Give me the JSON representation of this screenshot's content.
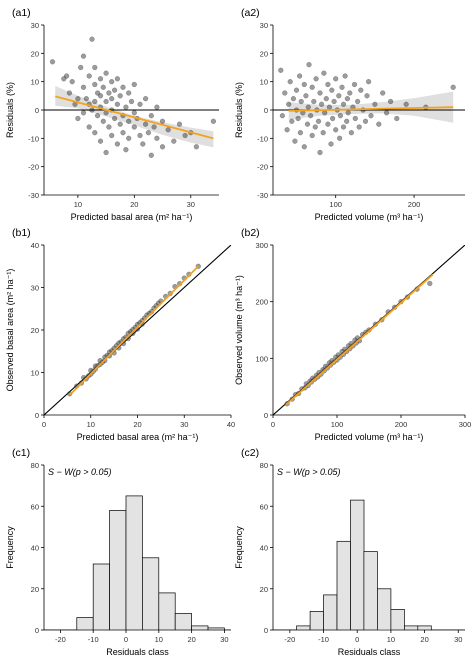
{
  "colors": {
    "point_fill": "#3a3a3a",
    "fit_line": "#f4a21e",
    "ci_band": "#d9d9d9",
    "ref_line": "#000000",
    "bar_fill": "#e3e3e3",
    "bar_stroke": "#000000",
    "axis": "#000000"
  },
  "chart_data": [
    {
      "panel": "(a1)",
      "type": "scatter",
      "xlabel": "Predicted basal area",
      "xunit": "(m² ha⁻¹)",
      "ylabel": "Residuals (%)",
      "xlim": [
        4,
        35
      ],
      "ylim": [
        -30,
        30
      ],
      "xticks": [
        10,
        20,
        30
      ],
      "yticks": [
        -30,
        -20,
        -10,
        0,
        10,
        20,
        30
      ],
      "hline_y": 0,
      "fit_line": [
        [
          6,
          4.8
        ],
        [
          34,
          -10
        ]
      ],
      "ci_band": {
        "x": [
          6,
          10,
          15,
          20,
          25,
          30,
          34
        ],
        "upper": [
          8.5,
          5,
          1.2,
          -2,
          -4.3,
          -6.2,
          -7.5
        ],
        "lower": [
          1.5,
          0.6,
          -2.3,
          -5.4,
          -8.8,
          -11.5,
          -13.2
        ]
      },
      "points": [
        [
          5.5,
          17
        ],
        [
          7.5,
          11
        ],
        [
          8,
          12
        ],
        [
          8.5,
          6
        ],
        [
          9,
          10
        ],
        [
          9.5,
          2
        ],
        [
          10,
          4
        ],
        [
          10,
          -3
        ],
        [
          10.5,
          15
        ],
        [
          11,
          19
        ],
        [
          11,
          8
        ],
        [
          11,
          -1
        ],
        [
          11.5,
          4
        ],
        [
          12,
          12
        ],
        [
          12,
          -6
        ],
        [
          12,
          2
        ],
        [
          12.5,
          25
        ],
        [
          12.5,
          0
        ],
        [
          13,
          9
        ],
        [
          13,
          3
        ],
        [
          13,
          -8
        ],
        [
          13,
          15
        ],
        [
          13.5,
          6
        ],
        [
          13.5,
          -2
        ],
        [
          14,
          11
        ],
        [
          14,
          -11
        ],
        [
          14,
          1
        ],
        [
          14,
          5
        ],
        [
          14.5,
          -4
        ],
        [
          14.5,
          8
        ],
        [
          15,
          3
        ],
        [
          15,
          -15
        ],
        [
          15,
          13
        ],
        [
          15,
          -1
        ],
        [
          15.5,
          6
        ],
        [
          15.5,
          -6
        ],
        [
          16,
          10
        ],
        [
          16,
          0
        ],
        [
          16,
          -9
        ],
        [
          16,
          4
        ],
        [
          16.5,
          -3
        ],
        [
          16.5,
          7
        ],
        [
          17,
          2
        ],
        [
          17,
          -12
        ],
        [
          17,
          11
        ],
        [
          17.5,
          -5
        ],
        [
          17.5,
          5
        ],
        [
          18,
          -2
        ],
        [
          18,
          8
        ],
        [
          18,
          -8
        ],
        [
          18.5,
          1
        ],
        [
          18.5,
          -14
        ],
        [
          19,
          -4
        ],
        [
          19,
          6
        ],
        [
          19,
          -10
        ],
        [
          19.5,
          3
        ],
        [
          20,
          -6
        ],
        [
          20,
          -1
        ],
        [
          20,
          9
        ],
        [
          20.5,
          -3
        ],
        [
          21,
          -9
        ],
        [
          21,
          2
        ],
        [
          21.5,
          -12
        ],
        [
          22,
          -5
        ],
        [
          22,
          4
        ],
        [
          22.5,
          -8
        ],
        [
          23,
          -2
        ],
        [
          23,
          -16
        ],
        [
          23.5,
          -6
        ],
        [
          24,
          -10
        ],
        [
          24,
          1
        ],
        [
          25,
          -4
        ],
        [
          25,
          -13
        ],
        [
          26,
          -7
        ],
        [
          27,
          -11
        ],
        [
          28,
          -5
        ],
        [
          29,
          -9
        ],
        [
          30,
          -8
        ],
        [
          31,
          -13
        ],
        [
          34,
          -4
        ]
      ]
    },
    {
      "panel": "(a2)",
      "type": "scatter",
      "xlabel": "Predicted volume",
      "xunit": "(m³ ha⁻¹)",
      "ylabel": "Residuals (%)",
      "xlim": [
        20,
        265
      ],
      "ylim": [
        -30,
        30
      ],
      "xticks": [
        100,
        200
      ],
      "yticks": [
        -30,
        -20,
        -10,
        0,
        10,
        20,
        30
      ],
      "hline_y": 0,
      "fit_line": [
        [
          40,
          -0.3
        ],
        [
          250,
          1
        ]
      ],
      "ci_band": {
        "x": [
          40,
          80,
          120,
          160,
          200,
          250
        ],
        "upper": [
          2.8,
          1.8,
          1.8,
          2.8,
          4.2,
          6.5
        ],
        "lower": [
          -3.4,
          -2,
          -1.4,
          -1.2,
          -2,
          -4.5
        ]
      },
      "points": [
        [
          30,
          14
        ],
        [
          32,
          -2
        ],
        [
          35,
          6
        ],
        [
          38,
          -7
        ],
        [
          40,
          2
        ],
        [
          42,
          10
        ],
        [
          44,
          -4
        ],
        [
          46,
          4
        ],
        [
          48,
          -11
        ],
        [
          50,
          7
        ],
        [
          50,
          0
        ],
        [
          52,
          -3
        ],
        [
          54,
          12
        ],
        [
          55,
          -8
        ],
        [
          56,
          3
        ],
        [
          58,
          -1
        ],
        [
          60,
          9
        ],
        [
          60,
          -13
        ],
        [
          62,
          5
        ],
        [
          64,
          -5
        ],
        [
          65,
          1
        ],
        [
          66,
          16
        ],
        [
          68,
          -2
        ],
        [
          70,
          8
        ],
        [
          70,
          -9
        ],
        [
          72,
          3
        ],
        [
          74,
          -6
        ],
        [
          75,
          11
        ],
        [
          76,
          0
        ],
        [
          78,
          -4
        ],
        [
          80,
          6
        ],
        [
          80,
          -15
        ],
        [
          82,
          2
        ],
        [
          84,
          -8
        ],
        [
          85,
          13
        ],
        [
          86,
          -1
        ],
        [
          88,
          4
        ],
        [
          90,
          -5
        ],
        [
          90,
          9
        ],
        [
          92,
          1
        ],
        [
          94,
          -12
        ],
        [
          95,
          7
        ],
        [
          96,
          -3
        ],
        [
          98,
          3
        ],
        [
          100,
          -7
        ],
        [
          100,
          11
        ],
        [
          102,
          0
        ],
        [
          104,
          5
        ],
        [
          105,
          -10
        ],
        [
          106,
          -2
        ],
        [
          108,
          8
        ],
        [
          110,
          2
        ],
        [
          110,
          -6
        ],
        [
          112,
          12
        ],
        [
          114,
          -4
        ],
        [
          115,
          4
        ],
        [
          116,
          -1
        ],
        [
          118,
          6
        ],
        [
          120,
          -8
        ],
        [
          122,
          1
        ],
        [
          124,
          9
        ],
        [
          125,
          -3
        ],
        [
          128,
          3
        ],
        [
          130,
          -6
        ],
        [
          132,
          7
        ],
        [
          135,
          0
        ],
        [
          138,
          -4
        ],
        [
          140,
          5
        ],
        [
          142,
          10
        ],
        [
          145,
          -2
        ],
        [
          150,
          2
        ],
        [
          155,
          -5
        ],
        [
          160,
          6
        ],
        [
          165,
          -1
        ],
        [
          170,
          3
        ],
        [
          178,
          -3
        ],
        [
          190,
          2
        ],
        [
          215,
          1
        ],
        [
          250,
          8
        ]
      ]
    },
    {
      "panel": "(b1)",
      "type": "scatter",
      "xlabel": "Predicted basal area",
      "xunit": "(m² ha⁻¹)",
      "ylabel": "Observed basal area",
      "yunit": "(m² ha⁻¹)",
      "xlim": [
        0,
        40
      ],
      "ylim": [
        0,
        40
      ],
      "xticks": [
        0,
        10,
        20,
        30,
        40
      ],
      "yticks": [
        0,
        10,
        20,
        30,
        40
      ],
      "identity_line": true,
      "fit_line": [
        [
          5.5,
          4.7
        ],
        [
          33,
          35
        ]
      ],
      "points": [
        [
          5.5,
          5
        ],
        [
          7,
          6.8
        ],
        [
          8,
          7.5
        ],
        [
          8.5,
          8.8
        ],
        [
          9,
          8.5
        ],
        [
          9.5,
          9.2
        ],
        [
          10,
          10.5
        ],
        [
          10,
          9.6
        ],
        [
          10.5,
          10.2
        ],
        [
          11,
          11.5
        ],
        [
          11,
          10.8
        ],
        [
          11.5,
          11.6
        ],
        [
          12,
          12.8
        ],
        [
          12,
          11.9
        ],
        [
          12.5,
          12.4
        ],
        [
          13,
          13.6
        ],
        [
          13,
          12.8
        ],
        [
          13.5,
          14
        ],
        [
          14,
          14.8
        ],
        [
          14,
          13.9
        ],
        [
          14.5,
          15.1
        ],
        [
          15,
          15.7
        ],
        [
          15,
          14.6
        ],
        [
          15.5,
          16.3
        ],
        [
          16,
          16.9
        ],
        [
          16,
          15.8
        ],
        [
          16.5,
          17.2
        ],
        [
          17,
          17.9
        ],
        [
          17,
          16.8
        ],
        [
          17.5,
          18.3
        ],
        [
          18,
          19.2
        ],
        [
          18,
          18
        ],
        [
          18.5,
          19.6
        ],
        [
          19,
          20.1
        ],
        [
          19,
          19.2
        ],
        [
          19.5,
          20.6
        ],
        [
          20,
          21.3
        ],
        [
          20,
          20.2
        ],
        [
          20.5,
          21.7
        ],
        [
          21,
          22.2
        ],
        [
          21,
          21.4
        ],
        [
          21.5,
          22.8
        ],
        [
          22,
          23.5
        ],
        [
          22.5,
          23.9
        ],
        [
          23,
          24.3
        ],
        [
          23.5,
          25.1
        ],
        [
          24,
          25.7
        ],
        [
          24.5,
          26.3
        ],
        [
          25,
          26.8
        ],
        [
          26,
          27.9
        ],
        [
          27,
          28.6
        ],
        [
          28,
          30.2
        ],
        [
          29,
          30.9
        ],
        [
          30,
          32.2
        ],
        [
          31,
          33.1
        ],
        [
          33,
          35
        ]
      ]
    },
    {
      "panel": "(b2)",
      "type": "scatter",
      "xlabel": "Predicted volume",
      "xunit": "(m³ ha⁻¹)",
      "ylabel": "Observed volume",
      "yunit": "(m³ ha⁻¹)",
      "xlim": [
        0,
        300
      ],
      "ylim": [
        0,
        300
      ],
      "xticks": [
        0,
        100,
        200,
        300
      ],
      "yticks": [
        0,
        100,
        200,
        300
      ],
      "identity_line": true,
      "fit_line": [
        [
          20,
          18
        ],
        [
          250,
          248
        ]
      ],
      "points": [
        [
          22,
          20
        ],
        [
          30,
          28
        ],
        [
          35,
          36
        ],
        [
          40,
          38
        ],
        [
          45,
          46
        ],
        [
          50,
          48
        ],
        [
          52,
          55
        ],
        [
          55,
          52
        ],
        [
          58,
          60
        ],
        [
          60,
          58
        ],
        [
          62,
          65
        ],
        [
          65,
          63
        ],
        [
          68,
          70
        ],
        [
          70,
          67
        ],
        [
          72,
          75
        ],
        [
          75,
          72
        ],
        [
          78,
          80
        ],
        [
          80,
          78
        ],
        [
          82,
          86
        ],
        [
          85,
          83
        ],
        [
          88,
          92
        ],
        [
          90,
          88
        ],
        [
          92,
          96
        ],
        [
          95,
          93
        ],
        [
          98,
          102
        ],
        [
          100,
          97
        ],
        [
          102,
          106
        ],
        [
          105,
          102
        ],
        [
          108,
          112
        ],
        [
          110,
          107
        ],
        [
          112,
          116
        ],
        [
          115,
          112
        ],
        [
          118,
          122
        ],
        [
          120,
          117
        ],
        [
          122,
          126
        ],
        [
          125,
          122
        ],
        [
          128,
          132
        ],
        [
          130,
          127
        ],
        [
          132,
          136
        ],
        [
          135,
          131
        ],
        [
          140,
          142
        ],
        [
          145,
          146
        ],
        [
          150,
          150
        ],
        [
          160,
          160
        ],
        [
          170,
          168
        ],
        [
          180,
          182
        ],
        [
          190,
          190
        ],
        [
          200,
          200
        ],
        [
          210,
          208
        ],
        [
          225,
          222
        ],
        [
          245,
          232
        ]
      ]
    },
    {
      "panel": "(c1)",
      "type": "bar",
      "annotation": "S − W(p > 0.05)",
      "xlabel": "Residuals class",
      "ylabel": "Frequency",
      "xlim": [
        -25,
        32
      ],
      "ylim": [
        0,
        80
      ],
      "xticks": [
        -20,
        -10,
        0,
        10,
        20,
        30
      ],
      "yticks": [
        0,
        20,
        40,
        60,
        80
      ],
      "bin_width": 5,
      "bin_left_edges": [
        -15,
        -10,
        -5,
        0,
        5,
        10,
        15,
        20,
        25
      ],
      "values": [
        6,
        32,
        58,
        65,
        35,
        18,
        8,
        2,
        1
      ]
    },
    {
      "panel": "(c2)",
      "type": "bar",
      "annotation": "S − W(p > 0.05)",
      "xlabel": "Residuals class",
      "ylabel": "Frequency",
      "xlim": [
        -25,
        32
      ],
      "ylim": [
        0,
        80
      ],
      "xticks": [
        -20,
        -10,
        0,
        10,
        20,
        30
      ],
      "yticks": [
        0,
        20,
        40,
        60,
        80
      ],
      "bin_width": 4,
      "bin_left_edges": [
        -18,
        -14,
        -10,
        -6,
        -2,
        2,
        6,
        10,
        14,
        18
      ],
      "values": [
        2,
        9,
        17,
        43,
        63,
        38,
        20,
        10,
        2,
        2
      ]
    }
  ]
}
